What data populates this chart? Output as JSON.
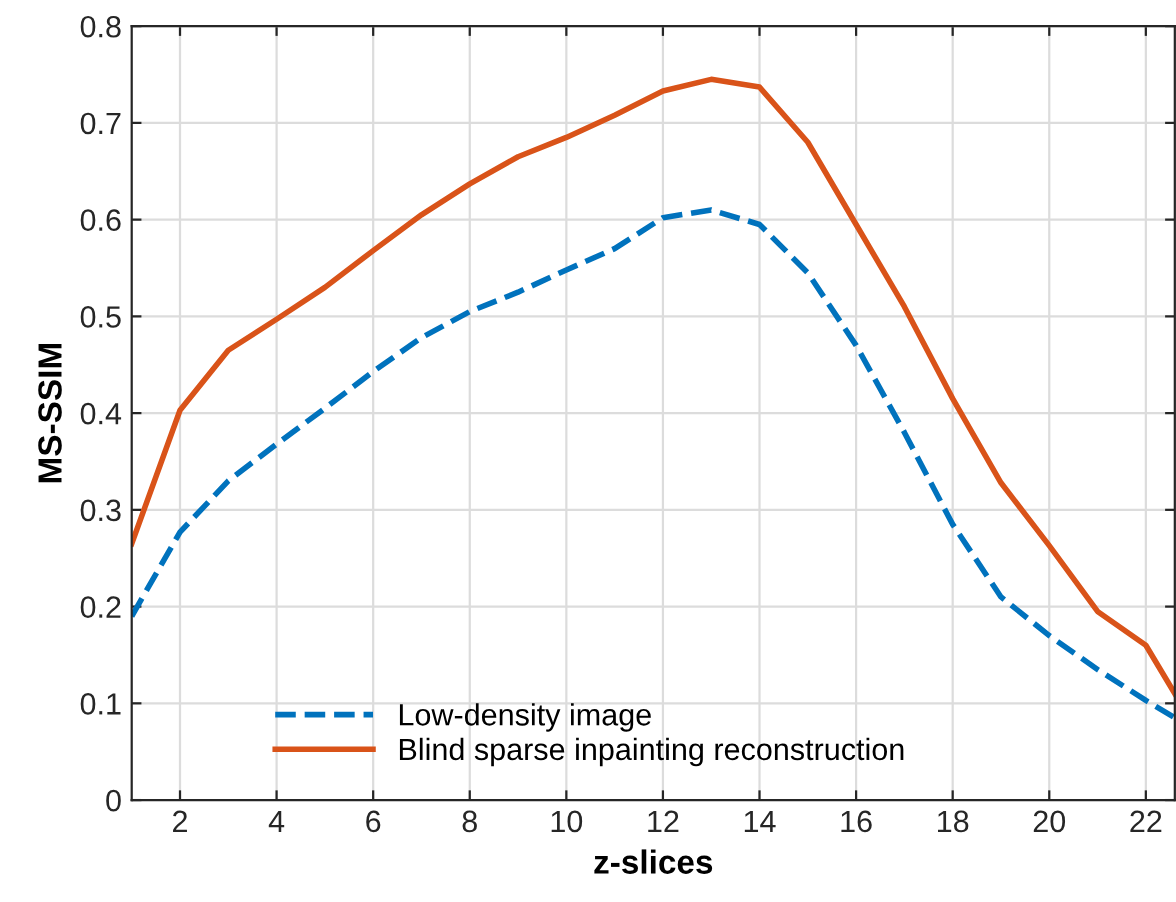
{
  "chart_data": {
    "type": "line",
    "xlabel": "z-slices",
    "ylabel": "MS-SSIM",
    "xlim": [
      1,
      22.6
    ],
    "xticks": [
      2,
      4,
      6,
      8,
      10,
      12,
      14,
      16,
      18,
      20,
      22
    ],
    "ylim": [
      0,
      0.8
    ],
    "yticks": [
      0,
      0.1,
      0.2,
      0.3,
      0.4,
      0.5,
      0.6,
      0.7,
      0.8
    ],
    "grid": true,
    "legend": "bottom",
    "x": [
      1,
      2,
      3,
      4,
      5,
      6,
      7,
      8,
      9,
      10,
      11,
      12,
      13,
      14,
      15,
      16,
      17,
      18,
      19,
      20,
      21,
      22,
      22.6
    ],
    "series": [
      {
        "name": "Low-density image",
        "color": "#0072bd",
        "line_style": "dashed",
        "values": [
          0.19,
          0.277,
          0.33,
          0.368,
          0.405,
          0.443,
          0.478,
          0.505,
          0.525,
          0.548,
          0.57,
          0.602,
          0.61,
          0.595,
          0.545,
          0.47,
          0.38,
          0.285,
          0.21,
          0.17,
          0.135,
          0.103,
          0.085
        ]
      },
      {
        "name": "Blind sparse inpainting reconstruction",
        "color": "#d95319",
        "line_style": "solid",
        "values": [
          0.265,
          0.403,
          0.465,
          0.497,
          0.53,
          0.568,
          0.605,
          0.637,
          0.665,
          0.685,
          0.708,
          0.733,
          0.745,
          0.737,
          0.68,
          0.595,
          0.51,
          0.415,
          0.328,
          0.263,
          0.195,
          0.16,
          0.11
        ]
      }
    ]
  }
}
